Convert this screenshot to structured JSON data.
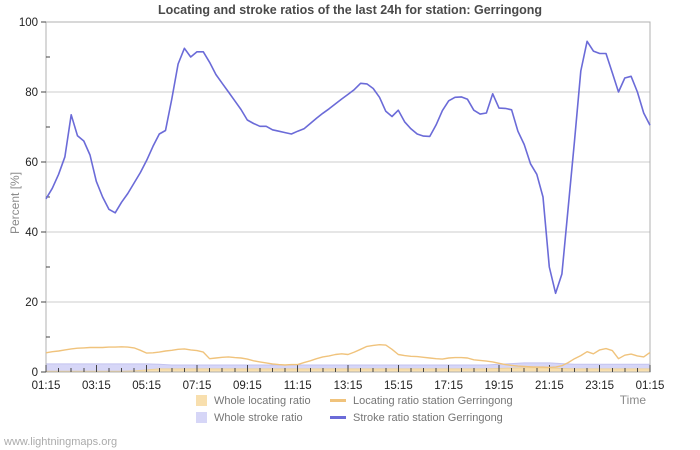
{
  "title": "Locating and stroke ratios of the last 24h for station: Gerringong",
  "watermark": "www.lightningmaps.org",
  "chart_data": {
    "type": "line",
    "title": "Locating and stroke ratios of the last 24h for station: Gerringong",
    "xlabel": "Time",
    "ylabel": "Percent  [%]",
    "ylim": [
      0,
      100
    ],
    "grid": true,
    "legend_position": "bottom",
    "y_ticks": [
      0,
      20,
      40,
      60,
      80,
      100
    ],
    "y_minor_ticks": [
      10,
      30,
      50,
      70,
      90
    ],
    "x_total_min": 1440,
    "x_tick_interval_min": 120,
    "x_minor_tick_interval_min": 30,
    "x_tick_labels": [
      "01:15",
      "03:15",
      "05:15",
      "07:15",
      "09:15",
      "11:15",
      "13:15",
      "15:15",
      "17:15",
      "19:15",
      "21:15",
      "23:15",
      "01:15"
    ],
    "colors": {
      "grid": "#cccccc",
      "border": "#b0b0b0",
      "tick": "#444444",
      "tick_label": "#222222",
      "axis_title": "#8a8a8a",
      "title": "#4a4a4a",
      "legend_text": "#767676",
      "watermark": "#ababab",
      "background": "#ffffff"
    },
    "series": [
      {
        "name": "Whole locating ratio",
        "type": "area",
        "color": "#f8dfae",
        "edge": "#eed29a",
        "interval_min": 30,
        "values": [
          0.2,
          0.2,
          0.2,
          0.2,
          0.2,
          0.2,
          0.2,
          0.3,
          0.6,
          0.9,
          0.9,
          0.9,
          0.9,
          0.9,
          0.9,
          0.9,
          0.9,
          0.9,
          0.9,
          0.9,
          0.9,
          0.9,
          0.9,
          0.9,
          0.9,
          0.9,
          0.9,
          0.9,
          0.9,
          0.9,
          0.9,
          0.9,
          0.9,
          0.9,
          0.9,
          0.9,
          1.0,
          1.1,
          1.2,
          1.2,
          1.1,
          1.0,
          0.9,
          0.9,
          0.9,
          0.9,
          0.9,
          0.9,
          0.9
        ]
      },
      {
        "name": "Whole stroke ratio",
        "type": "area",
        "color": "#d6d6f7",
        "edge": "#c3c3ef",
        "interval_min": 30,
        "values": [
          2.3,
          2.3,
          2.3,
          2.3,
          2.3,
          2.3,
          2.3,
          2.3,
          2.3,
          2.2,
          2.0,
          2.0,
          2.0,
          2.0,
          2.0,
          2.0,
          2.0,
          2.0,
          2.0,
          2.0,
          2.0,
          2.0,
          2.0,
          2.0,
          2.0,
          2.0,
          2.0,
          2.0,
          2.0,
          2.0,
          2.0,
          2.0,
          2.0,
          2.0,
          2.0,
          2.0,
          2.2,
          2.4,
          2.6,
          2.6,
          2.6,
          2.4,
          2.2,
          2.2,
          2.2,
          2.2,
          2.2,
          2.2,
          2.2
        ]
      },
      {
        "name": "Locating ratio station Gerringong",
        "type": "line",
        "color": "#f0c37c",
        "interval_min": 15,
        "values": [
          5.5,
          5.8,
          6.0,
          6.3,
          6.6,
          6.8,
          6.9,
          7.0,
          7.0,
          7.0,
          7.1,
          7.1,
          7.2,
          7.1,
          6.9,
          6.2,
          5.4,
          5.5,
          5.7,
          6.0,
          6.2,
          6.5,
          6.6,
          6.3,
          6.1,
          5.7,
          3.8,
          4.0,
          4.2,
          4.3,
          4.1,
          4.0,
          3.7,
          3.2,
          2.9,
          2.6,
          2.3,
          2.1,
          2.0,
          2.1,
          2.1,
          2.7,
          3.2,
          3.8,
          4.3,
          4.6,
          5.0,
          5.2,
          5.0,
          5.7,
          6.5,
          7.3,
          7.6,
          7.8,
          7.7,
          6.5,
          5.0,
          4.7,
          4.5,
          4.4,
          4.2,
          4.0,
          3.8,
          3.7,
          4.0,
          4.1,
          4.1,
          4.0,
          3.5,
          3.3,
          3.1,
          2.9,
          2.5,
          2.1,
          1.9,
          1.7,
          1.6,
          1.5,
          1.4,
          1.4,
          1.3,
          1.4,
          1.8,
          2.7,
          3.8,
          4.7,
          5.8,
          5.2,
          6.3,
          6.7,
          6.1,
          3.8,
          4.8,
          5.1,
          4.6,
          4.3,
          5.6
        ]
      },
      {
        "name": "Stroke ratio station Gerringong",
        "type": "line",
        "color": "#6b6bd8",
        "interval_min": 15,
        "values": [
          49.5,
          52.5,
          56.5,
          61.5,
          73.5,
          67.5,
          66,
          62,
          54.5,
          50,
          46.5,
          45.5,
          48.5,
          51,
          54,
          57,
          60.5,
          64.5,
          68,
          69,
          78,
          88,
          92.5,
          90,
          91.5,
          91.5,
          88.5,
          85,
          82.5,
          80,
          77.5,
          75,
          72,
          71,
          70.2,
          70.2,
          69.2,
          68.8,
          68.4,
          68,
          68.8,
          69.5,
          71,
          72.5,
          73.9,
          75.2,
          76.6,
          78,
          79.3,
          80.7,
          82.5,
          82.3,
          81,
          78.5,
          74.5,
          73,
          74.8,
          71.5,
          69.5,
          68,
          67.4,
          67.3,
          70.6,
          74.7,
          77.5,
          78.5,
          78.6,
          77.9,
          74.8,
          73.7,
          74,
          79.5,
          75.4,
          75.3,
          74.9,
          68.8,
          65,
          59.5,
          56.5,
          50,
          30,
          22.5,
          28,
          47,
          66,
          86,
          94.5,
          91.7,
          91,
          91,
          85.5,
          80,
          84,
          84.5,
          80,
          74,
          70.5
        ]
      }
    ]
  }
}
